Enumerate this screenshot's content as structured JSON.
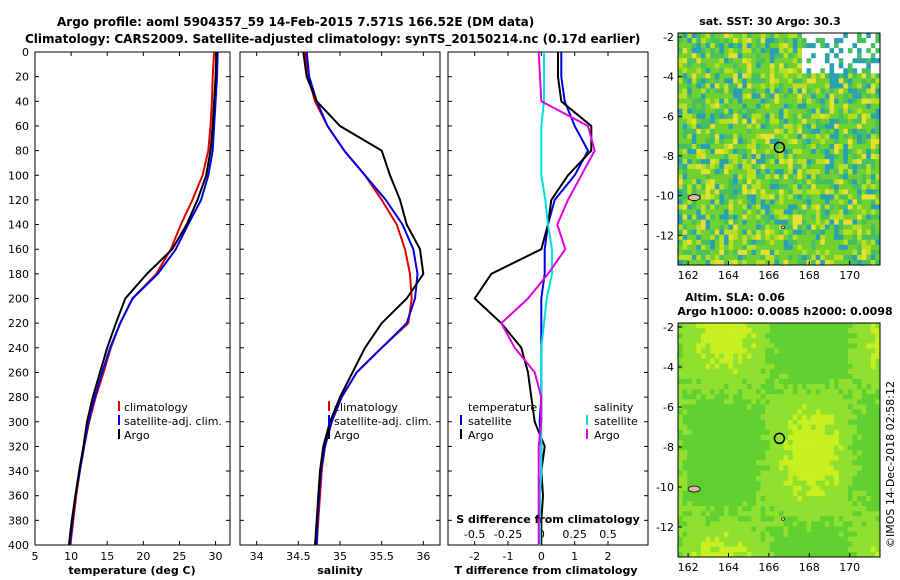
{
  "title": {
    "line1": "Argo profile: aoml 5904357_59 14-Feb-2015 7.571S 166.52E (DM data)",
    "line2": "Climatology: CARS2009. Satellite-adjusted climatology: synTS_20150214.nc (0.17d earlier)"
  },
  "credit": "©IMOS 14-Dec-2018 02:58:12",
  "colors": {
    "climatology": "#e00000",
    "satellite": "#0000e0",
    "argo": "#000000",
    "satellite_salinity": "#00e0e0",
    "climatology_salinity": "#e000e0"
  },
  "chart_data": [
    {
      "type": "line",
      "title": "",
      "xlabel": "temperature (deg C)",
      "ylabel": "",
      "xlim": [
        5,
        32
      ],
      "ylim": [
        400,
        0
      ],
      "x_ticks": [
        "5",
        "10",
        "15",
        "20",
        "25",
        "30"
      ],
      "y_ticks": [
        "0",
        "20",
        "40",
        "60",
        "80",
        "100",
        "120",
        "140",
        "160",
        "180",
        "200",
        "220",
        "240",
        "260",
        "280",
        "300",
        "320",
        "340",
        "360",
        "380",
        "400"
      ],
      "legend": [
        "climatology",
        "satellite-adj. clim.",
        "Argo"
      ],
      "legend_position": "right",
      "series": [
        {
          "name": "climatology",
          "color": "red",
          "depth": [
            0,
            20,
            40,
            60,
            80,
            100,
            120,
            140,
            160,
            180,
            200,
            220,
            240,
            260,
            280,
            300,
            320,
            340,
            360,
            380,
            400
          ],
          "values": [
            29.8,
            29.6,
            29.5,
            29.3,
            29.0,
            28.2,
            26.8,
            25.2,
            23.8,
            21.8,
            18.5,
            16.8,
            15.5,
            14.5,
            13.4,
            12.5,
            11.8,
            11.2,
            10.7,
            10.3,
            9.9
          ]
        },
        {
          "name": "satellite-adj. clim.",
          "color": "blue",
          "depth": [
            0,
            20,
            40,
            60,
            80,
            100,
            120,
            140,
            160,
            180,
            200,
            220,
            240,
            260,
            280,
            300,
            320,
            340,
            360,
            380,
            400
          ],
          "values": [
            30.3,
            30.2,
            30.0,
            29.8,
            29.6,
            29.0,
            28.0,
            26.2,
            24.5,
            22.0,
            18.5,
            16.8,
            15.4,
            14.3,
            13.3,
            12.4,
            11.8,
            11.2,
            10.6,
            10.2,
            9.8
          ]
        },
        {
          "name": "Argo",
          "color": "black",
          "depth": [
            0,
            20,
            40,
            60,
            80,
            100,
            120,
            140,
            160,
            180,
            200,
            220,
            240,
            260,
            280,
            300,
            320,
            340,
            360,
            380,
            400
          ],
          "values": [
            30.1,
            30.0,
            29.8,
            29.6,
            29.3,
            28.7,
            27.5,
            26.0,
            24.0,
            20.5,
            17.5,
            16.2,
            15.0,
            14.0,
            13.0,
            12.2,
            11.7,
            11.1,
            10.6,
            10.1,
            9.7
          ]
        }
      ]
    },
    {
      "type": "line",
      "title": "",
      "xlabel": "salinity",
      "ylabel": "",
      "xlim": [
        33.8,
        36.2
      ],
      "ylim": [
        400,
        0
      ],
      "x_ticks": [
        "34",
        "34.5",
        "35",
        "35.5",
        "36"
      ],
      "legend": [
        "climatology",
        "satellite-adj. clim.",
        "Argo"
      ],
      "legend_position": "right",
      "series": [
        {
          "name": "climatology",
          "color": "red",
          "depth": [
            0,
            20,
            40,
            60,
            80,
            100,
            120,
            140,
            160,
            180,
            200,
            220,
            240,
            260,
            280,
            300,
            320,
            340,
            360,
            380,
            400
          ],
          "values": [
            34.58,
            34.62,
            34.7,
            34.85,
            35.05,
            35.3,
            35.5,
            35.68,
            35.78,
            35.84,
            35.86,
            35.82,
            35.5,
            35.2,
            35.02,
            34.9,
            34.82,
            34.78,
            34.76,
            34.74,
            34.72
          ]
        },
        {
          "name": "satellite-adj. clim.",
          "color": "blue",
          "depth": [
            0,
            20,
            40,
            60,
            80,
            100,
            120,
            140,
            160,
            180,
            200,
            220,
            240,
            260,
            280,
            300,
            320,
            340,
            360,
            380,
            400
          ],
          "values": [
            34.6,
            34.63,
            34.72,
            34.85,
            35.05,
            35.3,
            35.55,
            35.75,
            35.88,
            35.93,
            35.9,
            35.8,
            35.5,
            35.2,
            35.02,
            34.9,
            34.82,
            34.77,
            34.75,
            34.73,
            34.72
          ]
        },
        {
          "name": "Argo",
          "color": "black",
          "depth": [
            0,
            20,
            40,
            60,
            80,
            100,
            120,
            140,
            160,
            180,
            200,
            220,
            240,
            260,
            280,
            300,
            320,
            340,
            360,
            380,
            400
          ],
          "values": [
            34.56,
            34.6,
            34.72,
            35.0,
            35.5,
            35.6,
            35.72,
            35.8,
            35.96,
            36.0,
            35.8,
            35.5,
            35.3,
            35.15,
            35.0,
            34.88,
            34.8,
            34.76,
            34.74,
            34.72,
            34.7
          ]
        }
      ]
    },
    {
      "type": "line",
      "title": "",
      "xlabel": "T difference from climatology",
      "xlabel_top": "S difference from climatology",
      "ylabel": "",
      "xlim": [
        -2.8,
        3.2
      ],
      "ylim": [
        400,
        0
      ],
      "x_ticks": [
        "-2",
        "-1",
        "0",
        "1",
        "2"
      ],
      "x_ticks_s": [
        "-0.5",
        "-0.25",
        "0",
        "0.25",
        "0.5"
      ],
      "legend_temperature": {
        "heading": "temperature",
        "items": [
          "satellite",
          "Argo"
        ]
      },
      "legend_salinity": {
        "heading": "salinity",
        "items": [
          "satellite",
          "Argo"
        ]
      },
      "series": [
        {
          "name": "temperature satellite",
          "color": "blue",
          "depth": [
            0,
            20,
            40,
            60,
            80,
            100,
            120,
            140,
            160,
            180,
            200,
            220,
            240,
            260,
            280,
            300,
            320,
            340,
            360,
            380,
            400
          ],
          "values": [
            0.6,
            0.6,
            0.7,
            1.0,
            1.4,
            1.0,
            0.4,
            0.2,
            0.1,
            0.1,
            0.0,
            0.0,
            0.0,
            0.0,
            0.0,
            -0.05,
            0.0,
            0.0,
            -0.05,
            -0.05,
            -0.05
          ]
        },
        {
          "name": "temperature Argo",
          "color": "black",
          "depth": [
            0,
            20,
            40,
            60,
            80,
            100,
            120,
            140,
            160,
            180,
            200,
            220,
            240,
            260,
            280,
            300,
            320,
            340,
            360,
            380,
            400
          ],
          "values": [
            0.5,
            0.5,
            0.6,
            1.5,
            1.5,
            0.8,
            0.3,
            0.2,
            0.0,
            -1.5,
            -2.0,
            -1.2,
            -0.6,
            -0.4,
            -0.3,
            -0.2,
            0.1,
            0.0,
            0.05,
            0.0,
            0.0
          ]
        },
        {
          "name": "salinity satellite",
          "color": "cyan",
          "depth": [
            0,
            20,
            40,
            60,
            80,
            100,
            120,
            140,
            160,
            180,
            200,
            220,
            240,
            260,
            280,
            300,
            320,
            340,
            360,
            380,
            400
          ],
          "values": [
            0.02,
            0.02,
            0.02,
            0.0,
            0.0,
            0.0,
            0.03,
            0.05,
            0.08,
            0.08,
            0.04,
            0.02,
            0.0,
            0.0,
            0.0,
            0.0,
            0.0,
            0.0,
            -0.01,
            -0.01,
            -0.01
          ]
        },
        {
          "name": "salinity Argo",
          "color": "magenta",
          "depth": [
            0,
            20,
            40,
            60,
            80,
            100,
            120,
            140,
            160,
            180,
            200,
            220,
            240,
            260,
            280,
            300,
            320,
            340,
            360,
            380,
            400
          ],
          "values": [
            -0.02,
            -0.01,
            0.0,
            0.35,
            0.4,
            0.3,
            0.2,
            0.12,
            0.18,
            0.05,
            -0.1,
            -0.3,
            -0.2,
            -0.05,
            0.0,
            0.0,
            -0.02,
            -0.02,
            -0.02,
            -0.02,
            -0.02
          ]
        }
      ]
    },
    {
      "type": "heatmap",
      "title": "sat. SST: 30 Argo: 30.3",
      "xlim": [
        161.5,
        171.5
      ],
      "ylim": [
        -13.5,
        -1.8
      ],
      "x_ticks": [
        "162",
        "164",
        "166",
        "168",
        "170"
      ],
      "y_ticks": [
        "-2",
        "-4",
        "-6",
        "-8",
        "-10",
        "-12"
      ],
      "argo_position": {
        "lon": 166.52,
        "lat": -7.571
      }
    },
    {
      "type": "heatmap",
      "title": "Altim. SLA: 0.06",
      "subtitle": "Argo h1000: 0.0085 h2000: 0.0098",
      "xlim": [
        161.5,
        171.5
      ],
      "ylim": [
        -13.5,
        -1.8
      ],
      "x_ticks": [
        "162",
        "164",
        "166",
        "168",
        "170"
      ],
      "y_ticks": [
        "-2",
        "-4",
        "-6",
        "-8",
        "-10",
        "-12"
      ],
      "argo_position": {
        "lon": 166.52,
        "lat": -7.571
      }
    }
  ]
}
